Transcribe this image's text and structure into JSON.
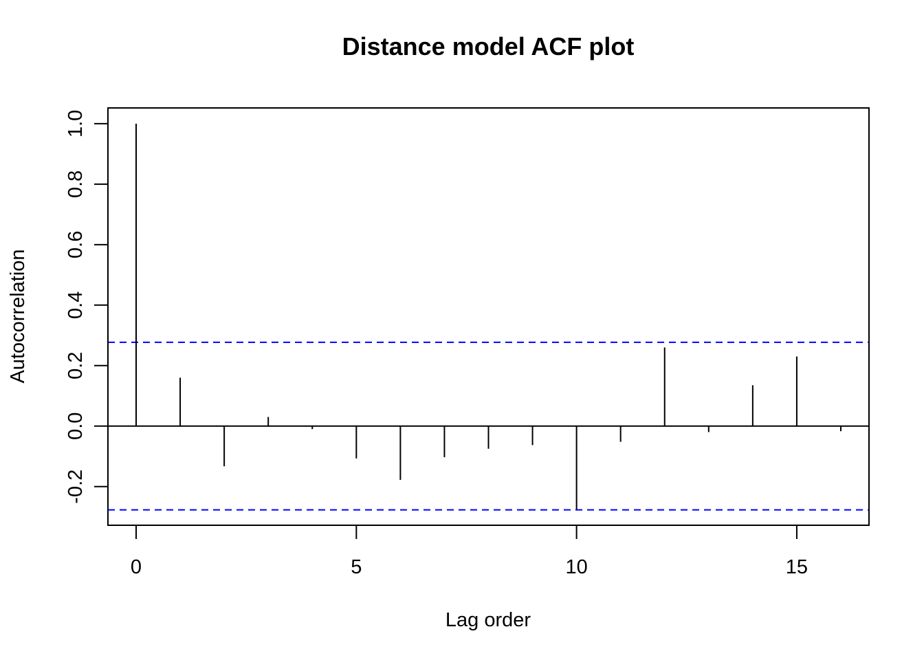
{
  "chart_data": {
    "type": "bar",
    "title": "Distance model ACF plot",
    "xlabel": "Lag order",
    "ylabel": "Autocorrelation",
    "x": [
      0,
      1,
      2,
      3,
      4,
      5,
      6,
      7,
      8,
      9,
      10,
      11,
      12,
      13,
      14,
      15,
      16
    ],
    "values": [
      1.0,
      0.16,
      -0.133,
      0.03,
      -0.01,
      -0.107,
      -0.178,
      -0.103,
      -0.075,
      -0.063,
      -0.275,
      -0.052,
      0.26,
      -0.02,
      0.135,
      0.23,
      -0.017
    ],
    "confidence_bounds": [
      0.277,
      -0.277
    ],
    "confidence_color": "#0000ff",
    "series_color": "#000000",
    "xlim": [
      -0.64,
      16.64
    ],
    "ylim": [
      -0.328,
      1.052
    ],
    "x_ticks": [
      0,
      5,
      10,
      15
    ],
    "y_ticks": [
      -0.2,
      0.0,
      0.2,
      0.4,
      0.6,
      0.8,
      1.0
    ],
    "x_tick_labels": [
      "0",
      "5",
      "10",
      "15"
    ],
    "y_tick_labels": [
      "-0.2",
      "0.0",
      "0.2",
      "0.4",
      "0.6",
      "0.8",
      "1.0"
    ],
    "grid": false,
    "legend": "none"
  }
}
